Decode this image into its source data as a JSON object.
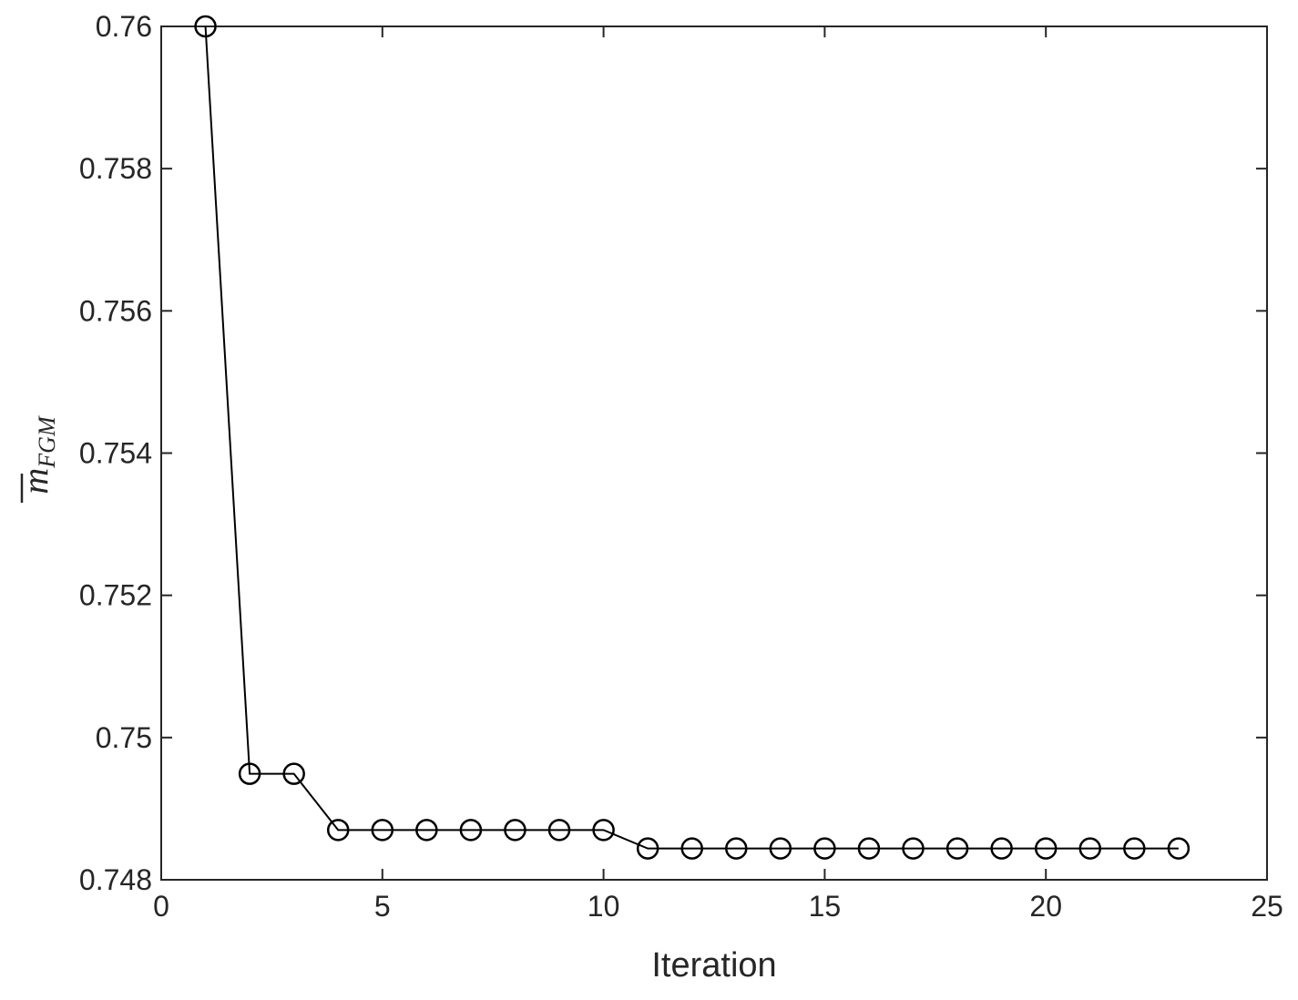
{
  "chart_data": {
    "type": "line",
    "xlabel": "Iteration",
    "ylabel": {
      "base": "m",
      "subscript": "FGM"
    },
    "x": [
      1,
      2,
      3,
      4,
      5,
      6,
      7,
      8,
      9,
      10,
      11,
      12,
      13,
      14,
      15,
      16,
      17,
      18,
      19,
      20,
      21,
      22,
      23
    ],
    "series": [
      {
        "color": "#000000",
        "marker": "circle",
        "values": [
          0.76,
          0.74949,
          0.74949,
          0.7487,
          0.7487,
          0.7487,
          0.7487,
          0.7487,
          0.7487,
          0.7487,
          0.74844,
          0.74844,
          0.74844,
          0.74844,
          0.74844,
          0.74844,
          0.74844,
          0.74844,
          0.74844,
          0.74844,
          0.74844,
          0.74844,
          0.74844
        ]
      }
    ],
    "xlim": [
      0,
      25
    ],
    "xticks": [
      0,
      5,
      10,
      15,
      20,
      25
    ],
    "ylim": [
      0.748,
      0.76
    ],
    "yticks": [
      0.748,
      0.75,
      0.752,
      0.754,
      0.756,
      0.758,
      0.76
    ],
    "grid": false
  }
}
